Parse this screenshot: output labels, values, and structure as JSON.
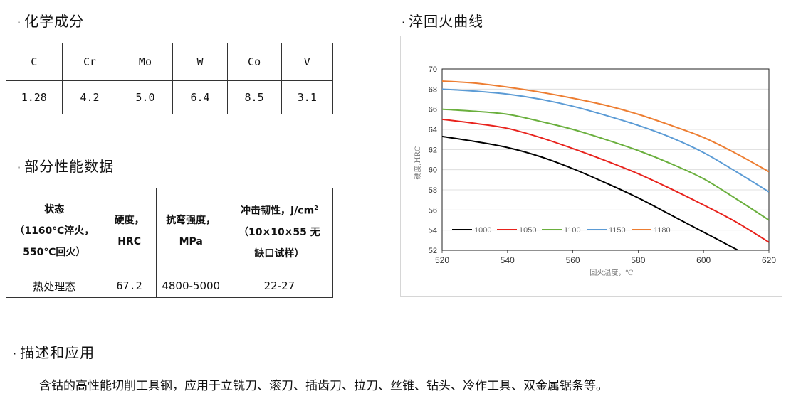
{
  "sections": {
    "composition_title": "化学成分",
    "properties_title": "部分性能数据",
    "curve_title": "淬回火曲线",
    "description_title": "描述和应用"
  },
  "composition": {
    "headers": [
      "C",
      "Cr",
      "Mo",
      "W",
      "Co",
      "V"
    ],
    "values": [
      "1.28",
      "4.2",
      "5.0",
      "6.4",
      "8.5",
      "3.1"
    ]
  },
  "properties": {
    "headers": {
      "state_l1": "状态",
      "state_l2": "（1160℃淬火，",
      "state_l3": "550℃回火）",
      "hardness_l1": "硬度，",
      "hardness_l2": "HRC",
      "bending_l1": "抗弯强度，",
      "bending_l2": "MPa",
      "impact_l1": "冲击韧性，J/cm",
      "impact_sup": "2",
      "impact_l2": "（10×10×55 无",
      "impact_l3": "缺口试样）"
    },
    "row": {
      "state": "热处理态",
      "hardness": "67.2",
      "bending": "4800-5000",
      "impact": "22-27"
    }
  },
  "description": {
    "text": "含钴的高性能切削工具钢，应用于立铣刀、滚刀、插齿刀、拉刀、丝锥、钻头、冷作工具、双金属锯条等。"
  },
  "chart_data": {
    "type": "line",
    "title": "",
    "xlabel": "回火温度，℃",
    "ylabel": "硬度,HRC",
    "xlim": [
      520,
      620
    ],
    "ylim": [
      52,
      70
    ],
    "x_ticks": [
      "520",
      "540",
      "560",
      "580",
      "600",
      "620"
    ],
    "y_ticks": [
      "52",
      "54",
      "56",
      "58",
      "60",
      "62",
      "64",
      "66",
      "68",
      "70"
    ],
    "grid": true,
    "legend_position": "bottom-left",
    "x": [
      520,
      530,
      540,
      550,
      560,
      570,
      580,
      590,
      600,
      610,
      620
    ],
    "series": [
      {
        "name": "1000",
        "color": "#000000",
        "values": [
          63.3,
          62.8,
          62.2,
          61.3,
          60.1,
          58.7,
          57.2,
          55.5,
          53.8,
          52.1,
          null
        ]
      },
      {
        "name": "1050",
        "color": "#e8221c",
        "values": [
          65.0,
          64.6,
          64.1,
          63.2,
          62.1,
          60.9,
          59.6,
          58.1,
          56.5,
          54.8,
          52.8
        ]
      },
      {
        "name": "1100",
        "color": "#6aaf3d",
        "values": [
          66.0,
          65.8,
          65.5,
          64.8,
          64.0,
          63.0,
          61.9,
          60.6,
          59.1,
          57.1,
          55.0
        ]
      },
      {
        "name": "1150",
        "color": "#5b9bd5",
        "values": [
          68.0,
          67.8,
          67.5,
          67.0,
          66.3,
          65.4,
          64.4,
          63.2,
          61.7,
          59.8,
          57.8
        ]
      },
      {
        "name": "1180",
        "color": "#ed7d31",
        "values": [
          68.8,
          68.6,
          68.2,
          67.7,
          67.1,
          66.4,
          65.5,
          64.4,
          63.2,
          61.6,
          59.8
        ]
      }
    ]
  }
}
